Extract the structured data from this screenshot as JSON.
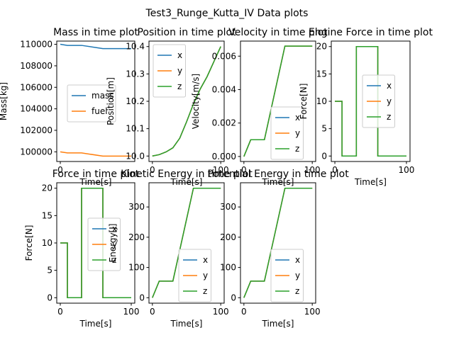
{
  "suptitle": "Test3_Runge_Kutta_IV Data plots",
  "colors": {
    "blue": "#1f77b4",
    "orange": "#ff7f0e",
    "green": "#2ca02c"
  },
  "chart_data": [
    {
      "id": "mass",
      "type": "line",
      "title": "Mass in time plot",
      "xlabel": "Time[s]",
      "ylabel": "Mass[kg]",
      "xlim": [
        -5,
        105
      ],
      "ylim": [
        99100,
        110300
      ],
      "xticks": [
        {
          "v": 0,
          "label": "0"
        }
      ],
      "yticks": [
        {
          "v": 100000,
          "label": "100000"
        },
        {
          "v": 102000,
          "label": "102000"
        },
        {
          "v": 104000,
          "label": "104000"
        },
        {
          "v": 106000,
          "label": "106000"
        },
        {
          "v": 108000,
          "label": "108000"
        },
        {
          "v": 110000,
          "label": "110000"
        }
      ],
      "legend": "center-right",
      "series": [
        {
          "name": "mass",
          "color": "#1f77b4",
          "x": [
            0,
            10,
            30,
            60,
            100
          ],
          "y": [
            110000,
            109900,
            109900,
            109600,
            109600
          ]
        },
        {
          "name": "fuel",
          "color": "#ff7f0e",
          "x": [
            0,
            10,
            30,
            60,
            100
          ],
          "y": [
            100000,
            99900,
            99900,
            99600,
            99600
          ]
        }
      ]
    },
    {
      "id": "position",
      "type": "line",
      "title": "Position in time plot",
      "xlabel": "Time[s]",
      "ylabel": "Position[m]",
      "xlim": [
        -5,
        105
      ],
      "ylim": [
        9.98,
        10.42
      ],
      "xticks": [
        {
          "v": 0,
          "label": "0"
        },
        {
          "v": 100,
          "label": "100"
        }
      ],
      "yticks": [
        {
          "v": 10.0,
          "label": "10.0"
        },
        {
          "v": 10.1,
          "label": "10.1"
        },
        {
          "v": 10.2,
          "label": "10.2"
        },
        {
          "v": 10.3,
          "label": "10.3"
        },
        {
          "v": 10.4,
          "label": "10.4"
        }
      ],
      "legend": "upper-left",
      "series": [
        {
          "name": "x",
          "color": "#1f77b4",
          "x": [
            0,
            10,
            20,
            30,
            40,
            50,
            60,
            70,
            80,
            90,
            100
          ],
          "y": [
            10.0,
            10.005,
            10.015,
            10.03,
            10.065,
            10.125,
            10.19,
            10.245,
            10.29,
            10.345,
            10.4
          ]
        },
        {
          "name": "y",
          "color": "#ff7f0e",
          "x": [
            0,
            10,
            20,
            30,
            40,
            50,
            60,
            70,
            80,
            90,
            100
          ],
          "y": [
            10.0,
            10.005,
            10.015,
            10.03,
            10.065,
            10.125,
            10.19,
            10.245,
            10.29,
            10.345,
            10.4
          ]
        },
        {
          "name": "z",
          "color": "#2ca02c",
          "x": [
            0,
            10,
            20,
            30,
            40,
            50,
            60,
            70,
            80,
            90,
            100
          ],
          "y": [
            10.0,
            10.005,
            10.015,
            10.03,
            10.065,
            10.125,
            10.19,
            10.245,
            10.29,
            10.345,
            10.4
          ]
        }
      ]
    },
    {
      "id": "velocity",
      "type": "line",
      "title": "Velocity in time plot",
      "xlabel": "Time[s]",
      "ylabel": "Velocity[m/s]",
      "xlim": [
        -5,
        105
      ],
      "ylim": [
        -0.0003,
        0.0069
      ],
      "xticks": [
        {
          "v": 0,
          "label": "0"
        },
        {
          "v": 100,
          "label": "100"
        }
      ],
      "yticks": [
        {
          "v": 0.0,
          "label": "0.000"
        },
        {
          "v": 0.002,
          "label": "0.002"
        },
        {
          "v": 0.004,
          "label": "0.004"
        },
        {
          "v": 0.006,
          "label": "0.006"
        }
      ],
      "legend": "lower-right",
      "series": [
        {
          "name": "x",
          "color": "#1f77b4",
          "x": [
            0,
            10,
            30,
            60,
            100
          ],
          "y": [
            0,
            0.001,
            0.001,
            0.0066,
            0.0066
          ]
        },
        {
          "name": "y",
          "color": "#ff7f0e",
          "x": [
            0,
            10,
            30,
            60,
            100
          ],
          "y": [
            0,
            0.001,
            0.001,
            0.0066,
            0.0066
          ]
        },
        {
          "name": "z",
          "color": "#2ca02c",
          "x": [
            0,
            10,
            30,
            60,
            100
          ],
          "y": [
            0,
            0.001,
            0.001,
            0.0066,
            0.0066
          ]
        }
      ]
    },
    {
      "id": "engine-force",
      "type": "line",
      "title": "Engine Force in time plot",
      "xlabel": "Time[s]",
      "ylabel": "Force[N]",
      "xlim": [
        -5,
        105
      ],
      "ylim": [
        -1,
        21
      ],
      "xticks": [
        {
          "v": 0,
          "label": "0"
        },
        {
          "v": 100,
          "label": "100"
        }
      ],
      "yticks": [
        {
          "v": 0,
          "label": "0"
        },
        {
          "v": 5,
          "label": "5"
        },
        {
          "v": 10,
          "label": "10"
        },
        {
          "v": 15,
          "label": "15"
        },
        {
          "v": 20,
          "label": "20"
        }
      ],
      "legend": "center-right",
      "series": [
        {
          "name": "x",
          "color": "#1f77b4",
          "x": [
            0,
            10,
            10,
            30,
            30,
            60,
            60,
            100
          ],
          "y": [
            10,
            10,
            0,
            0,
            20,
            20,
            0,
            0
          ]
        },
        {
          "name": "y",
          "color": "#ff7f0e",
          "x": [
            0,
            10,
            10,
            30,
            30,
            60,
            60,
            100
          ],
          "y": [
            10,
            10,
            0,
            0,
            20,
            20,
            0,
            0
          ]
        },
        {
          "name": "z",
          "color": "#2ca02c",
          "x": [
            0,
            10,
            10,
            30,
            30,
            60,
            60,
            100
          ],
          "y": [
            10,
            10,
            0,
            0,
            20,
            20,
            0,
            0
          ]
        }
      ]
    },
    {
      "id": "force",
      "type": "line",
      "title": "Force in time plot",
      "xlabel": "Time[s]",
      "ylabel": "Force[N]",
      "xlim": [
        -5,
        105
      ],
      "ylim": [
        -1,
        21
      ],
      "xticks": [
        {
          "v": 0,
          "label": "0"
        },
        {
          "v": 100,
          "label": "100"
        }
      ],
      "yticks": [
        {
          "v": 0,
          "label": "0"
        },
        {
          "v": 5,
          "label": "5"
        },
        {
          "v": 10,
          "label": "10"
        },
        {
          "v": 15,
          "label": "15"
        },
        {
          "v": 20,
          "label": "20"
        }
      ],
      "legend": "center-right",
      "series": [
        {
          "name": "x",
          "color": "#1f77b4",
          "x": [
            0,
            10,
            10,
            30,
            30,
            60,
            60,
            100
          ],
          "y": [
            10,
            10,
            0,
            0,
            20,
            20,
            0,
            0
          ]
        },
        {
          "name": "y",
          "color": "#ff7f0e",
          "x": [
            0,
            10,
            10,
            30,
            30,
            60,
            60,
            100
          ],
          "y": [
            10,
            10,
            0,
            0,
            20,
            20,
            0,
            0
          ]
        },
        {
          "name": "z",
          "color": "#2ca02c",
          "x": [
            0,
            10,
            10,
            30,
            30,
            60,
            60,
            100
          ],
          "y": [
            10,
            10,
            0,
            0,
            20,
            20,
            0,
            0
          ]
        }
      ]
    },
    {
      "id": "kinetic",
      "type": "line",
      "title": "Kinetic Energy in time plot",
      "xlabel": "Time[s]",
      "ylabel": "Energy[J]",
      "xlim": [
        -5,
        105
      ],
      "ylim": [
        -18,
        380
      ],
      "xticks": [
        {
          "v": 0,
          "label": "0"
        },
        {
          "v": 100,
          "label": "100"
        }
      ],
      "yticks": [
        {
          "v": 0,
          "label": "0"
        },
        {
          "v": 100,
          "label": "100"
        },
        {
          "v": 200,
          "label": "200"
        },
        {
          "v": 300,
          "label": "300"
        }
      ],
      "legend": "lower-right",
      "series": [
        {
          "name": "x",
          "color": "#1f77b4",
          "x": [
            0,
            10,
            30,
            60,
            100
          ],
          "y": [
            0,
            55,
            55,
            362,
            362
          ]
        },
        {
          "name": "y",
          "color": "#ff7f0e",
          "x": [
            0,
            10,
            30,
            60,
            100
          ],
          "y": [
            0,
            55,
            55,
            362,
            362
          ]
        },
        {
          "name": "z",
          "color": "#2ca02c",
          "x": [
            0,
            10,
            30,
            60,
            100
          ],
          "y": [
            0,
            55,
            55,
            362,
            362
          ]
        }
      ]
    },
    {
      "id": "potential",
      "type": "line",
      "title": "Potential Energy in time plot",
      "xlabel": "Time[s]",
      "ylabel": "",
      "xlim": [
        -5,
        105
      ],
      "ylim": [
        -18,
        380
      ],
      "xticks": [
        {
          "v": 0,
          "label": "0"
        },
        {
          "v": 100,
          "label": "100"
        }
      ],
      "yticks": [
        {
          "v": 0,
          "label": "0"
        },
        {
          "v": 100,
          "label": "100"
        },
        {
          "v": 200,
          "label": "200"
        },
        {
          "v": 300,
          "label": "300"
        }
      ],
      "legend": "lower-right",
      "series": [
        {
          "name": "x",
          "color": "#1f77b4",
          "x": [
            0,
            10,
            30,
            60,
            100
          ],
          "y": [
            0,
            55,
            55,
            362,
            362
          ]
        },
        {
          "name": "y",
          "color": "#ff7f0e",
          "x": [
            0,
            10,
            30,
            60,
            100
          ],
          "y": [
            0,
            55,
            55,
            362,
            362
          ]
        },
        {
          "name": "z",
          "color": "#2ca02c",
          "x": [
            0,
            10,
            30,
            60,
            100
          ],
          "y": [
            0,
            55,
            55,
            362,
            362
          ]
        }
      ]
    }
  ]
}
